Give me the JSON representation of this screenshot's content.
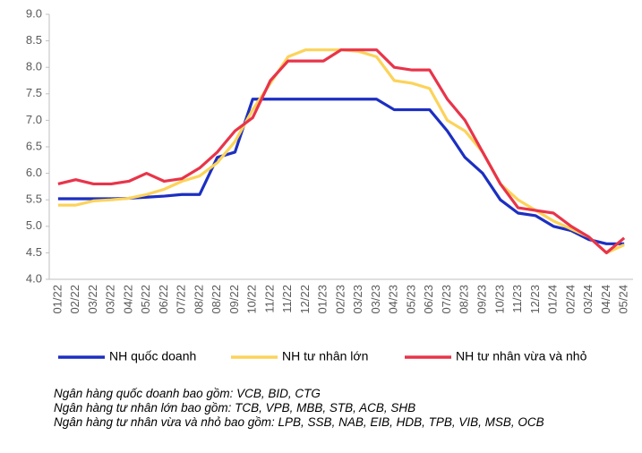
{
  "chart_data": {
    "type": "line",
    "categories": [
      "01/22",
      "02/22",
      "03/22",
      "03/22",
      "04/22",
      "05/22",
      "06/22",
      "07/22",
      "08/22",
      "08/22",
      "09/22",
      "10/22",
      "11/22",
      "11/22",
      "12/22",
      "01/23",
      "02/23",
      "03/23",
      "03/23",
      "04/23",
      "05/23",
      "06/23",
      "07/23",
      "08/23",
      "09/23",
      "10/23",
      "11/23",
      "12/23",
      "01/24",
      "02/24",
      "03/24",
      "04/24",
      "05/24"
    ],
    "series": [
      {
        "name": "NH quốc doanh",
        "color": "#1c2fc2",
        "values": [
          5.52,
          5.52,
          5.52,
          5.52,
          5.53,
          5.55,
          5.57,
          5.6,
          5.6,
          6.3,
          6.4,
          7.4,
          7.4,
          7.4,
          7.4,
          7.4,
          7.4,
          7.4,
          7.4,
          7.2,
          7.2,
          7.2,
          6.8,
          6.3,
          6.0,
          5.5,
          5.25,
          5.2,
          5.0,
          4.92,
          4.75,
          4.67,
          4.67
        ]
      },
      {
        "name": "NH tư nhân lớn",
        "color": "#fcd35a",
        "values": [
          5.4,
          5.4,
          5.48,
          5.5,
          5.53,
          5.6,
          5.7,
          5.85,
          5.95,
          6.2,
          6.6,
          7.2,
          7.7,
          8.2,
          8.33,
          8.33,
          8.33,
          8.3,
          8.2,
          7.75,
          7.7,
          7.6,
          7.0,
          6.8,
          6.4,
          5.8,
          5.5,
          5.3,
          5.1,
          4.95,
          4.8,
          4.5,
          4.65
        ]
      },
      {
        "name": "NH tư nhân vừa và nhỏ",
        "color": "#e8344a",
        "values": [
          5.8,
          5.88,
          5.8,
          5.8,
          5.85,
          6.0,
          5.85,
          5.9,
          6.1,
          6.4,
          6.8,
          7.05,
          7.75,
          8.12,
          8.12,
          8.12,
          8.33,
          8.33,
          8.33,
          8.0,
          7.95,
          7.95,
          7.4,
          7.0,
          6.4,
          5.8,
          5.35,
          5.3,
          5.25,
          5.0,
          4.8,
          4.5,
          4.78
        ]
      }
    ],
    "ylim": [
      4.0,
      9.0
    ],
    "yticks": [
      {
        "value": 4.0,
        "label": "4.0"
      },
      {
        "value": 4.5,
        "label": "4.5"
      },
      {
        "value": 5.0,
        "label": "5.0"
      },
      {
        "value": 5.5,
        "label": "5.5"
      },
      {
        "value": 6.0,
        "label": "6.0"
      },
      {
        "value": 6.5,
        "label": "6.5"
      },
      {
        "value": 7.0,
        "label": "7.0"
      },
      {
        "value": 7.5,
        "label": "7.5"
      },
      {
        "value": 8.0,
        "label": "8.0"
      },
      {
        "value": 8.5,
        "label": "8.5"
      },
      {
        "value": 9.0,
        "label": "9.0"
      }
    ],
    "grid": false,
    "notes": [
      "Ngân hàng quốc doanh bao gồm: VCB, BID, CTG",
      "Ngân hàng tư nhân lớn bao gồm: TCB, VPB, MBB, STB, ACB, SHB",
      "Ngân hàng tư nhân vừa và nhỏ bao gồm: LPB, SSB, NAB, EIB, HDB, TPB, VIB, MSB, OCB"
    ]
  }
}
